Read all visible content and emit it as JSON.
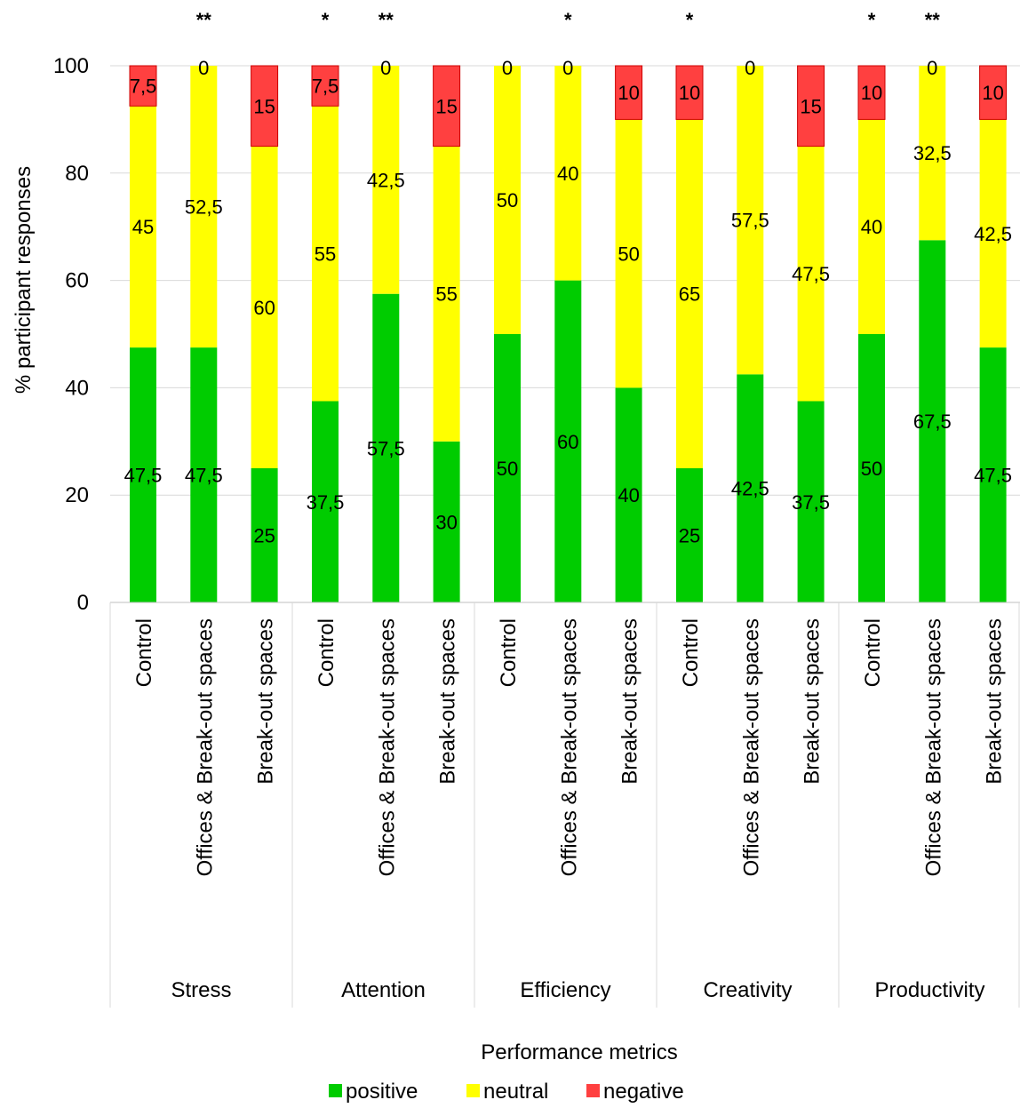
{
  "chart_data": {
    "type": "bar",
    "stacked": true,
    "title": "",
    "xlabel": "Performance metrics",
    "ylabel": "% participant responses",
    "ylim": [
      0,
      100
    ],
    "yticks": [
      "0",
      "20",
      "40",
      "60",
      "80",
      "100"
    ],
    "grid": true,
    "legend_position": "bottom",
    "series_order": [
      "positive",
      "neutral",
      "negative"
    ],
    "colors": {
      "positive": "#00cc00",
      "neutral": "#ffff00",
      "negative": "#ff4040"
    },
    "groups": [
      {
        "name": "Stress",
        "bars": [
          {
            "label": "Control",
            "sig": "",
            "values": [
              47.5,
              45,
              7.5
            ],
            "labels": [
              "47,5",
              "45",
              "7,5"
            ]
          },
          {
            "label": "Offices & Break-out spaces",
            "sig": "**",
            "values": [
              47.5,
              52.5,
              0
            ],
            "labels": [
              "47,5",
              "52,5",
              "0"
            ]
          },
          {
            "label": "Break-out spaces",
            "sig": "",
            "values": [
              25,
              60,
              15
            ],
            "labels": [
              "25",
              "60",
              "15"
            ]
          }
        ]
      },
      {
        "name": "Attention",
        "bars": [
          {
            "label": "Control",
            "sig": "*",
            "values": [
              37.5,
              55,
              7.5
            ],
            "labels": [
              "37,5",
              "55",
              "7,5"
            ]
          },
          {
            "label": "Offices & Break-out spaces",
            "sig": "**",
            "values": [
              57.5,
              42.5,
              0
            ],
            "labels": [
              "57,5",
              "42,5",
              "0"
            ]
          },
          {
            "label": "Break-out spaces",
            "sig": "",
            "values": [
              30,
              55,
              15
            ],
            "labels": [
              "30",
              "55",
              "15"
            ]
          }
        ]
      },
      {
        "name": "Efficiency",
        "bars": [
          {
            "label": "Control",
            "sig": "",
            "values": [
              50,
              50,
              0
            ],
            "labels": [
              "50",
              "50",
              "0"
            ]
          },
          {
            "label": "Offices & Break-out spaces",
            "sig": "*",
            "values": [
              60,
              40,
              0
            ],
            "labels": [
              "60",
              "40",
              "0"
            ]
          },
          {
            "label": "Break-out spaces",
            "sig": "",
            "values": [
              40,
              50,
              10
            ],
            "labels": [
              "40",
              "50",
              "10"
            ]
          }
        ]
      },
      {
        "name": "Creativity",
        "bars": [
          {
            "label": "Control",
            "sig": "*",
            "values": [
              25,
              65,
              10
            ],
            "labels": [
              "25",
              "65",
              "10"
            ]
          },
          {
            "label": "Offices & Break-out spaces",
            "sig": "",
            "values": [
              42.5,
              57.5,
              0
            ],
            "labels": [
              "42,5",
              "57,5",
              "0"
            ]
          },
          {
            "label": "Break-out spaces",
            "sig": "",
            "values": [
              37.5,
              47.5,
              15
            ],
            "labels": [
              "37,5",
              "47,5",
              "15"
            ]
          }
        ]
      },
      {
        "name": "Productivity",
        "bars": [
          {
            "label": "Control",
            "sig": "*",
            "values": [
              50,
              40,
              10
            ],
            "labels": [
              "50",
              "40",
              "10"
            ]
          },
          {
            "label": "Offices & Break-out spaces",
            "sig": "**",
            "values": [
              67.5,
              32.5,
              0
            ],
            "labels": [
              "67,5",
              "32,5",
              "0"
            ]
          },
          {
            "label": "Break-out spaces",
            "sig": "",
            "values": [
              47.5,
              42.5,
              10
            ],
            "labels": [
              "47,5",
              "42,5",
              "10"
            ]
          }
        ]
      }
    ]
  }
}
